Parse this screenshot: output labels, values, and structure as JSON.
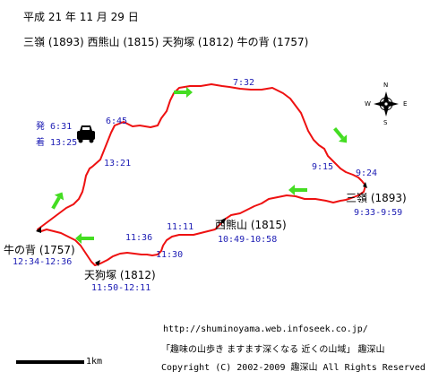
{
  "header": {
    "date": "平成 21 年 11 月 29 日",
    "peaks_line": "三嶺 (1893)  西熊山 (1815)  天狗塚 (1812)  牛の背 (1757)"
  },
  "parking": {
    "depart_label": "発",
    "depart_time": "6:31",
    "arrive_label": "着",
    "arrive_time": "13:25",
    "icon": "car-icon"
  },
  "waypoints": {
    "w1": "6:45",
    "w2": "7:32",
    "w3": "9:15",
    "w4": "9:24",
    "w5": "11:11",
    "w6": "11:36",
    "w7": "11:30",
    "w8": "13:21"
  },
  "peaks": [
    {
      "name": "三嶺 (1893)",
      "time": "9:33-9:59"
    },
    {
      "name": "西熊山 (1815)",
      "time": "10:49-10:58"
    },
    {
      "name": "天狗塚 (1812)",
      "time": "11:50-12:11"
    },
    {
      "name": "牛の背 (1757)",
      "time": "12:34-12:36"
    }
  ],
  "compass": {
    "n": "N",
    "s": "S",
    "e": "E",
    "w": "W",
    "icon": "compass-rose-icon"
  },
  "scale": {
    "label": "1km"
  },
  "footer": {
    "url": "http://shuminoyama.web.infoseek.co.jp/",
    "tagline": "「趣味の山歩き ますます深くなる  近くの山域」  趣深山",
    "copyright": "Copyright (C) 2002-2009 趣深山 All Rights Reserved"
  },
  "colors": {
    "route": "#ee1111",
    "arrow": "#44dd22",
    "time": "#1c1cb4",
    "text": "#000000"
  }
}
